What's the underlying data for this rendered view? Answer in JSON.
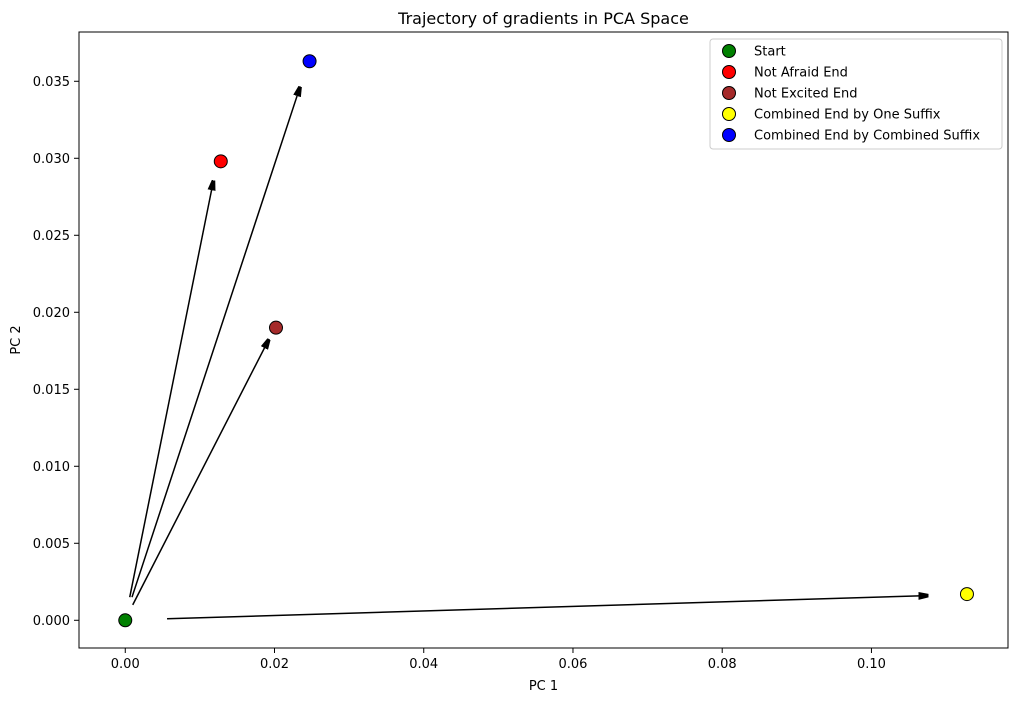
{
  "chart_data": {
    "type": "scatter",
    "title": "Trajectory of gradients in PCA Space",
    "xlabel": "PC 1",
    "ylabel": "PC 2",
    "xlim": [
      -0.0062,
      0.1183
    ],
    "ylim": [
      -0.0018,
      0.0382
    ],
    "xticks": [
      0.0,
      0.02,
      0.04,
      0.06,
      0.08,
      0.1
    ],
    "xtick_labels": [
      "0.00",
      "0.02",
      "0.04",
      "0.06",
      "0.08",
      "0.10"
    ],
    "yticks": [
      0.0,
      0.005,
      0.01,
      0.015,
      0.02,
      0.025,
      0.03,
      0.035
    ],
    "ytick_labels": [
      "0.000",
      "0.005",
      "0.010",
      "0.015",
      "0.020",
      "0.025",
      "0.030",
      "0.035"
    ],
    "grid": false,
    "legend_position": "top-right",
    "points": [
      {
        "name": "Start",
        "x": 0.0,
        "y": 0.0,
        "color": "#008000"
      },
      {
        "name": "Not Afraid End",
        "x": 0.0128,
        "y": 0.0298,
        "color": "#ff0000"
      },
      {
        "name": "Not Excited End",
        "x": 0.0202,
        "y": 0.019,
        "color": "#a52a2a"
      },
      {
        "name": "Combined End by One Suffix",
        "x": 0.1128,
        "y": 0.0017,
        "color": "#ffff00"
      },
      {
        "name": "Combined End by Combined Suffix",
        "x": 0.0247,
        "y": 0.0363,
        "color": "#0000ff"
      }
    ],
    "arrows": [
      {
        "x1": 0.0006,
        "y1": 0.0015,
        "x2": 0.0118,
        "y2": 0.0285
      },
      {
        "x1": 0.0009,
        "y1": 0.0015,
        "x2": 0.0234,
        "y2": 0.0346
      },
      {
        "x1": 0.001,
        "y1": 0.001,
        "x2": 0.0192,
        "y2": 0.0182
      },
      {
        "x1": 0.0056,
        "y1": 0.0001,
        "x2": 0.1075,
        "y2": 0.0016
      }
    ]
  }
}
